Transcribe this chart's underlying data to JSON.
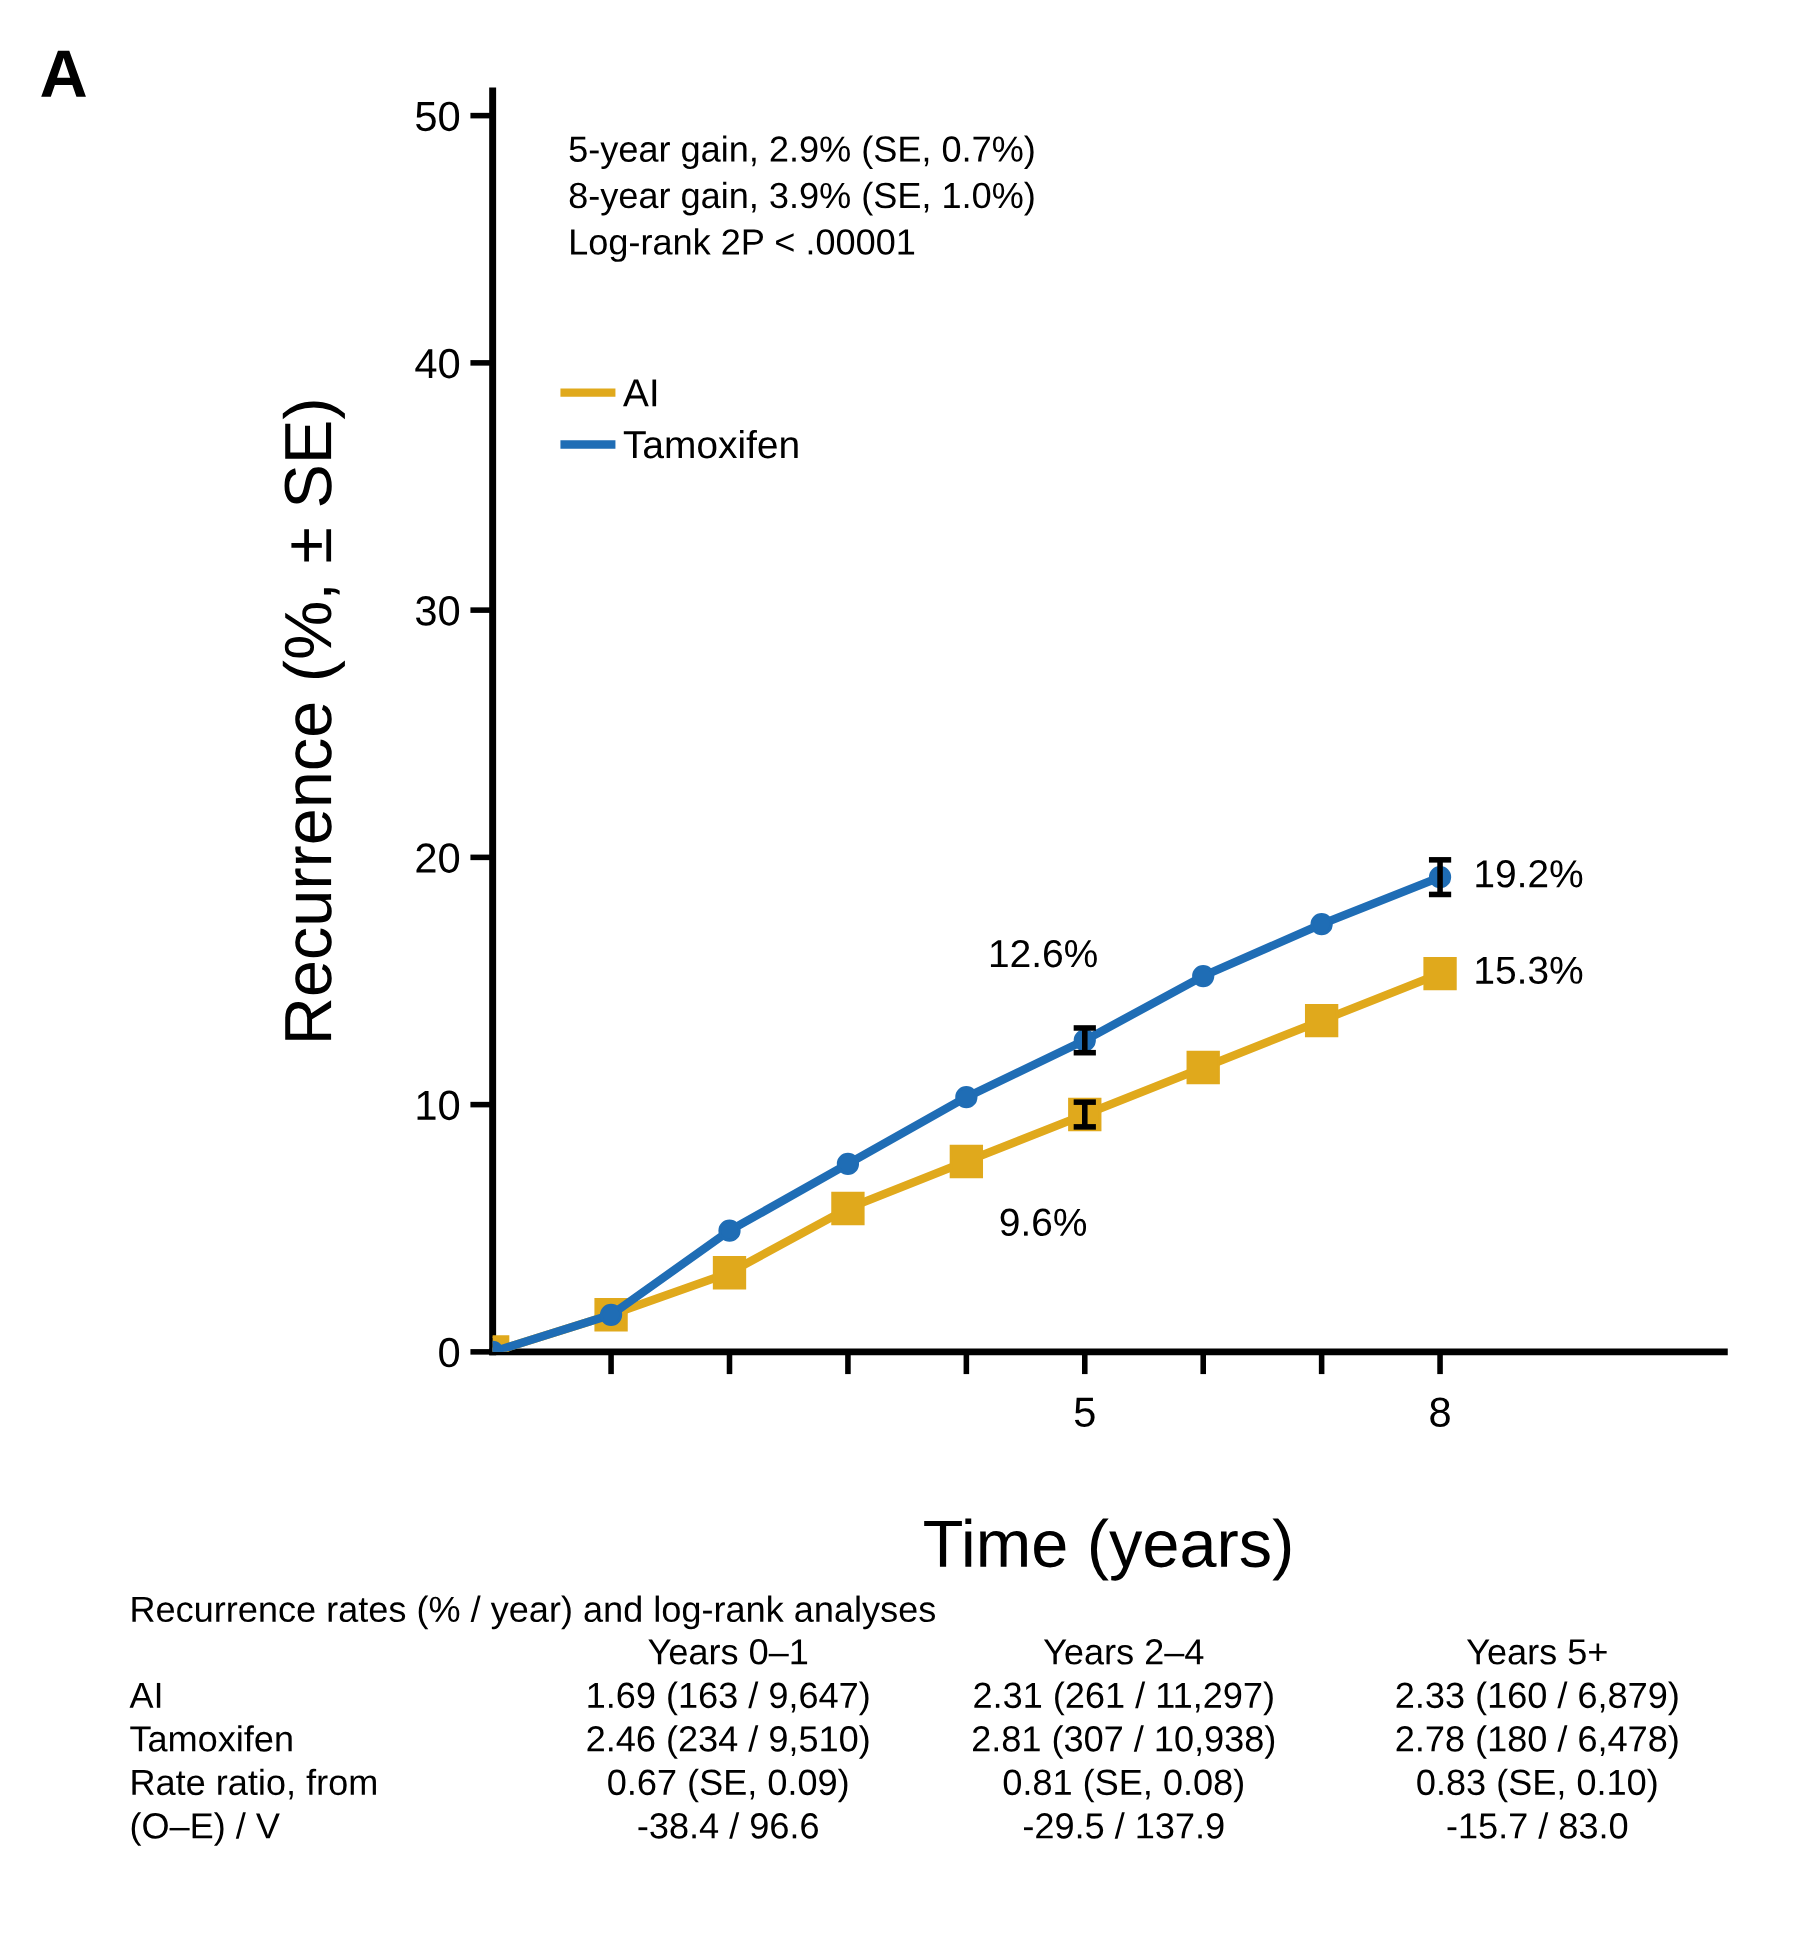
{
  "chart_data": {
    "type": "line",
    "xlabel": "Time (years)",
    "ylabel": "Recurrence (%, ± SE)",
    "x": [
      0,
      1,
      2,
      3,
      4,
      5,
      6,
      7,
      8
    ],
    "series": [
      {
        "name": "AI",
        "color": "#e0a91c",
        "marker": "square",
        "values": [
          0,
          1.5,
          3.2,
          5.8,
          7.7,
          9.6,
          11.5,
          13.4,
          15.3
        ],
        "errors": [
          null,
          null,
          null,
          null,
          null,
          0.5,
          null,
          null,
          null
        ],
        "value_labels": [
          null,
          null,
          null,
          null,
          null,
          "9.6%",
          null,
          null,
          "15.3%"
        ]
      },
      {
        "name": "Tamoxifen",
        "color": "#1f6db5",
        "marker": "circle",
        "values": [
          0,
          1.5,
          4.9,
          7.6,
          10.3,
          12.6,
          15.2,
          17.3,
          19.2
        ],
        "errors": [
          null,
          null,
          null,
          null,
          null,
          0.5,
          null,
          null,
          0.7
        ],
        "value_labels": [
          null,
          null,
          null,
          null,
          null,
          "12.6%",
          null,
          null,
          "19.2%"
        ]
      }
    ],
    "xlim": [
      0,
      10.4
    ],
    "ylim": [
      0,
      51
    ],
    "xticks": [
      {
        "value": 1,
        "label": null
      },
      {
        "value": 2,
        "label": null
      },
      {
        "value": 3,
        "label": null
      },
      {
        "value": 4,
        "label": null
      },
      5,
      {
        "value": 6,
        "label": null
      },
      {
        "value": 7,
        "label": null
      },
      8
    ],
    "yticks": [
      0,
      10,
      20,
      30,
      40,
      50
    ],
    "grid": false,
    "legend": "top left",
    "line_style": "solid",
    "annotations": [
      "A",
      "5-year gain, 2.9% (SE, 0.7%)",
      "8-year gain, 3.9% (SE, 1.0%)",
      "Log-rank 2P < .00001",
      "Recurrence rates (% / year) and log-rank analyses",
      "Years 0–1",
      "Years 2–4",
      "Years 5+",
      "AI",
      "1.69 (163 / 9,647)",
      "2.31 (261 / 11,297)",
      "2.33 (160 / 6,879)",
      "Tamoxifen",
      "2.46 (234 / 9,510)",
      "2.81 (307 / 10,938)",
      "2.78 (180 / 6,478)",
      "Rate ratio, from",
      "0.67 (SE, 0.09)",
      "0.81 (SE, 0.08)",
      "0.83 (SE, 0.10)",
      "(O–E) / V",
      "-38.4 / 96.6",
      "-29.5 / 137.9",
      "-15.7 / 83.0"
    ]
  }
}
